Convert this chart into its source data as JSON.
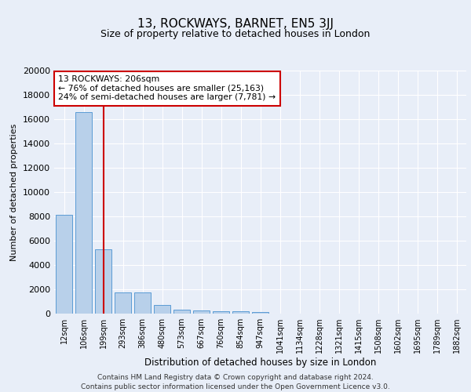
{
  "title1": "13, ROCKWAYS, BARNET, EN5 3JJ",
  "title2": "Size of property relative to detached houses in London",
  "xlabel": "Distribution of detached houses by size in London",
  "ylabel": "Number of detached properties",
  "categories": [
    "12sqm",
    "106sqm",
    "199sqm",
    "293sqm",
    "386sqm",
    "480sqm",
    "573sqm",
    "667sqm",
    "760sqm",
    "854sqm",
    "947sqm",
    "1041sqm",
    "1134sqm",
    "1228sqm",
    "1321sqm",
    "1415sqm",
    "1508sqm",
    "1602sqm",
    "1695sqm",
    "1789sqm",
    "1882sqm"
  ],
  "values": [
    8100,
    16600,
    5300,
    1750,
    1750,
    700,
    330,
    250,
    220,
    190,
    150,
    0,
    0,
    0,
    0,
    0,
    0,
    0,
    0,
    0,
    0
  ],
  "bar_color": "#b8d0ea",
  "bar_edge_color": "#5b9bd5",
  "highlight_color": "#cc0000",
  "highlight_index": 2,
  "annotation_text": "13 ROCKWAYS: 206sqm\n← 76% of detached houses are smaller (25,163)\n24% of semi-detached houses are larger (7,781) →",
  "annotation_box_color": "#ffffff",
  "annotation_box_edge": "#cc0000",
  "ylim": [
    0,
    20000
  ],
  "yticks": [
    0,
    2000,
    4000,
    6000,
    8000,
    10000,
    12000,
    14000,
    16000,
    18000,
    20000
  ],
  "footer": "Contains HM Land Registry data © Crown copyright and database right 2024.\nContains public sector information licensed under the Open Government Licence v3.0.",
  "bg_color": "#e8eef8",
  "plot_bg_color": "#e8eef8",
  "grid_color": "#ffffff"
}
